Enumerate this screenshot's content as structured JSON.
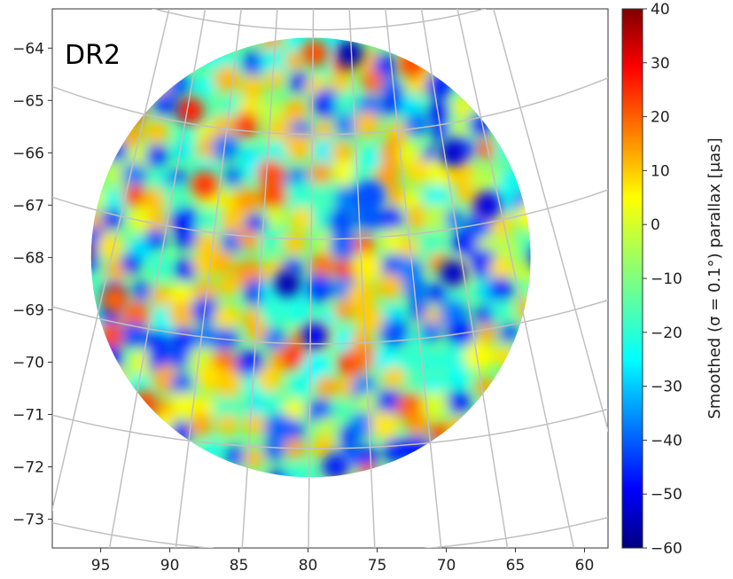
{
  "chart_data": {
    "type": "heatmap",
    "title": "DR2",
    "xlabel": "",
    "ylabel": "",
    "xlim": [
      98.5,
      58.3
    ],
    "ylim": [
      -73.55,
      -63.25
    ],
    "x_ticks": [
      95,
      90,
      85,
      80,
      75,
      70,
      65,
      60
    ],
    "y_ticks": [
      -64,
      -65,
      -66,
      -67,
      -68,
      -69,
      -70,
      -71,
      -72,
      -73
    ],
    "field_center": [
      79.8,
      -68.0
    ],
    "field_radius_deg": 4.2,
    "colorbar": {
      "label": "Smoothed (σ = 0.1°) parallax [μas]",
      "range": [
        -60,
        40
      ],
      "ticks": [
        40,
        30,
        20,
        10,
        0,
        -10,
        -20,
        -30,
        -40,
        -50,
        -60
      ],
      "colormap": "jet"
    },
    "features": [
      {
        "type": "minimum",
        "x": 77.0,
        "y": -64.1,
        "value": -55
      },
      {
        "type": "minimum",
        "x": 69.5,
        "y": -66.0,
        "value": -52
      },
      {
        "type": "minimum",
        "x": 67.0,
        "y": -67.0,
        "value": -50
      },
      {
        "type": "minimum",
        "x": 81.5,
        "y": -68.5,
        "value": -55
      },
      {
        "type": "minimum",
        "x": 69.5,
        "y": -68.3,
        "value": -52
      },
      {
        "type": "minimum",
        "x": 63.0,
        "y": -68.0,
        "value": -50
      },
      {
        "type": "minimum",
        "x": 79.5,
        "y": -69.5,
        "value": -48
      },
      {
        "type": "minimum",
        "x": 78.0,
        "y": -72.0,
        "value": -45
      },
      {
        "type": "minimum",
        "x": 75.5,
        "y": -66.8,
        "value": -40
      },
      {
        "type": "maximum",
        "x": 96.8,
        "y": -67.9,
        "value": 35
      },
      {
        "type": "maximum",
        "x": 88.5,
        "y": -65.2,
        "value": 25
      },
      {
        "type": "maximum",
        "x": 87.5,
        "y": -66.6,
        "value": 22
      },
      {
        "type": "maximum",
        "x": 91.8,
        "y": -70.8,
        "value": 20
      },
      {
        "type": "maximum",
        "x": 94.0,
        "y": -68.8,
        "value": 18
      },
      {
        "type": "maximum",
        "x": 79.5,
        "y": -64.1,
        "value": 20
      },
      {
        "type": "maximum",
        "x": 72.5,
        "y": -64.3,
        "value": 20
      }
    ],
    "colors": {
      "min": "#00007f",
      "max": "#7f0000",
      "grid": "#c0c0c0"
    }
  }
}
